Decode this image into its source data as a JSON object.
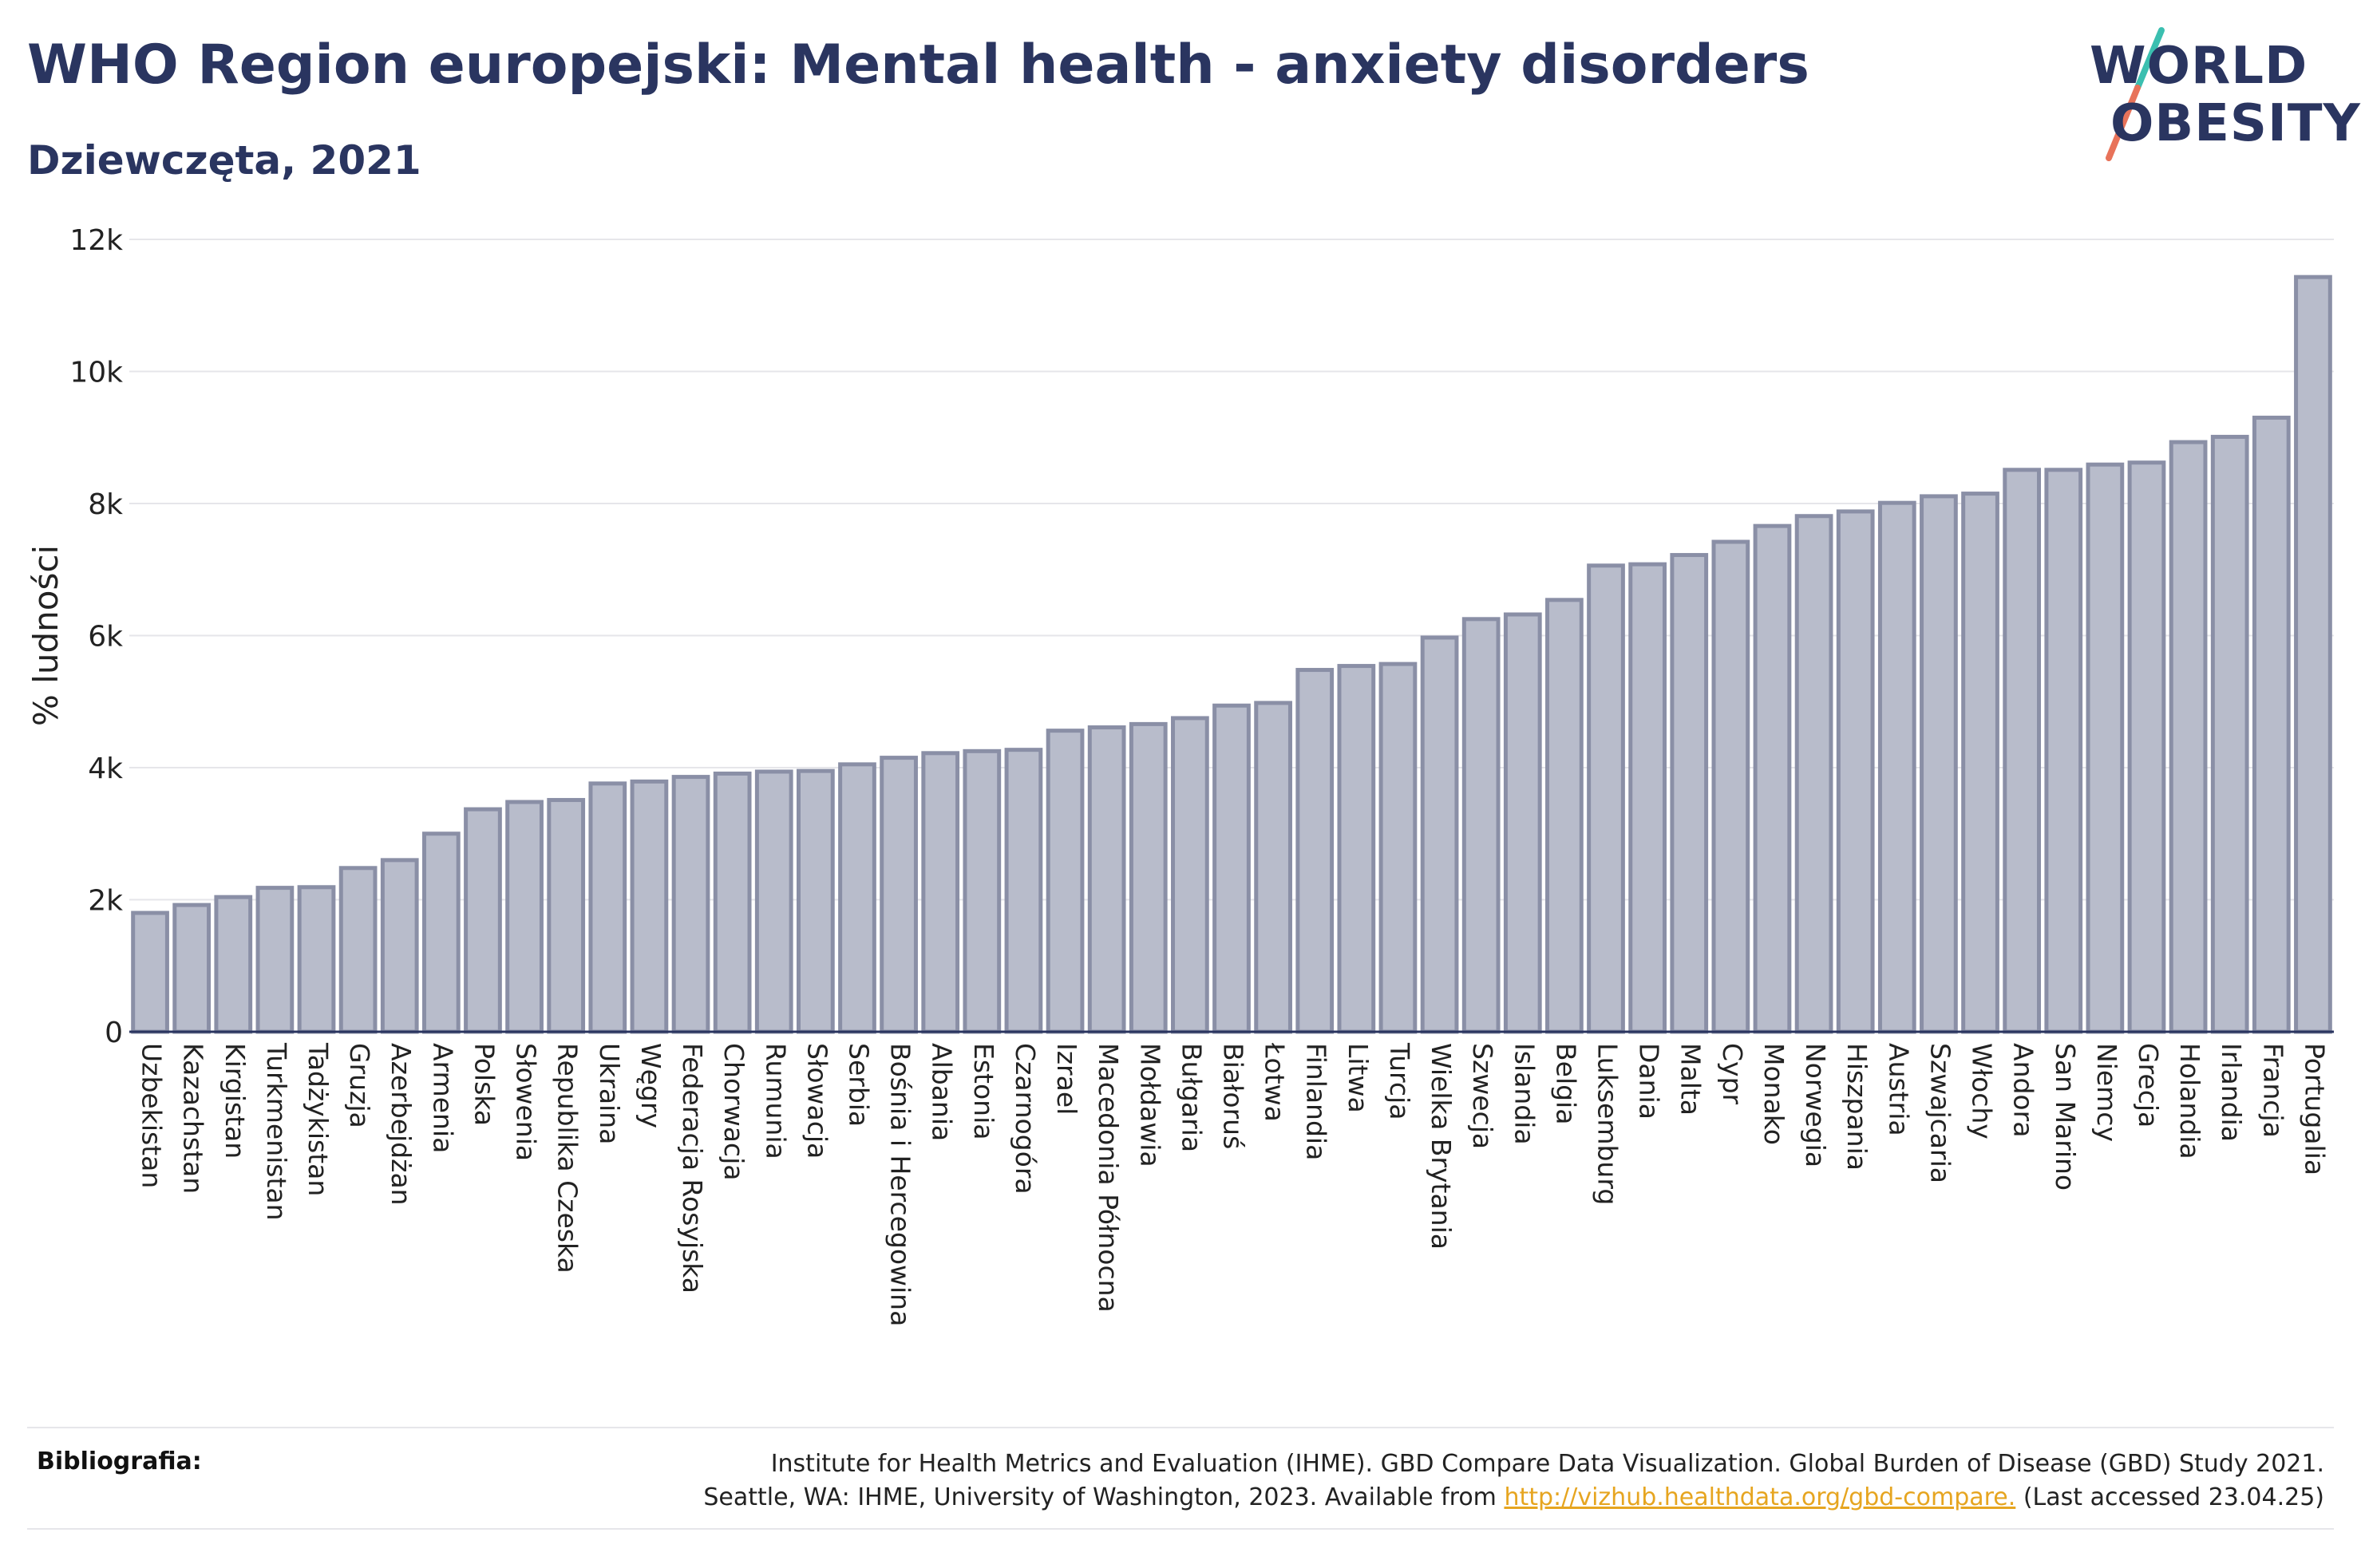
{
  "header": {
    "title": "WHO Region europejski: Mental health - anxiety disorders",
    "subtitle": "Dziewczęta, 2021"
  },
  "logo": {
    "line1": "WORLD",
    "line2": "OBESITY",
    "colors": {
      "text": "#2a3560",
      "slash_top": "#3bbfb0",
      "slash_bottom": "#e8735a"
    }
  },
  "footer": {
    "label": "Bibliografia:",
    "line1": "Institute for Health Metrics and Evaluation (IHME). GBD Compare Data Visualization. Global Burden of Disease (GBD) Study 2021.",
    "line2_prefix": "Seattle, WA: IHME, University of Washington, 2023. Available from ",
    "link": "http://vizhub.healthdata.org/gbd-compare.",
    "line2_suffix": " (Last accessed 23.04.25)"
  },
  "chart_data": {
    "type": "bar",
    "title": "WHO Region europejski: Mental health - anxiety disorders",
    "subtitle": "Dziewczęta, 2021",
    "ylabel": "% ludności",
    "xlabel": "",
    "ylim": [
      0,
      12000
    ],
    "yticks": [
      0,
      2000,
      4000,
      6000,
      8000,
      10000,
      12000
    ],
    "ytick_labels": [
      "0",
      "2k",
      "4k",
      "6k",
      "8k",
      "10k",
      "12k"
    ],
    "grid": true,
    "colors": {
      "bar_fill": "#b8bccb",
      "bar_stroke": "#8a8fa6",
      "axis": "#2a3560",
      "grid": "#e6e6ea"
    },
    "categories": [
      "Uzbekistan",
      "Kazachstan",
      "Kirgistan",
      "Turkmenistan",
      "Tadżykistan",
      "Gruzja",
      "Azerbejdżan",
      "Armenia",
      "Polska",
      "Słowenia",
      "Republika Czeska",
      "Ukraina",
      "Węgry",
      "Federacja Rosyjska",
      "Chorwacja",
      "Rumunia",
      "Słowacja",
      "Serbia",
      "Bośnia i Hercegowina",
      "Albania",
      "Estonia",
      "Czarnogóra",
      "Izrael",
      "Macedonia Północna",
      "Mołdawia",
      "Bułgaria",
      "Białoruś",
      "Łotwa",
      "Finlandia",
      "Litwa",
      "Turcja",
      "Wielka Brytania",
      "Szwecja",
      "Islandia",
      "Belgia",
      "Luksemburg",
      "Dania",
      "Malta",
      "Cypr",
      "Monako",
      "Norwegia",
      "Hiszpania",
      "Austria",
      "Szwajcaria",
      "Włochy",
      "Andora",
      "San Marino",
      "Niemcy",
      "Grecja",
      "Holandia",
      "Irlandia",
      "Francja",
      "Portugalia"
    ],
    "values": [
      1800,
      1920,
      2040,
      2180,
      2190,
      2480,
      2600,
      3000,
      3370,
      3480,
      3510,
      3760,
      3790,
      3860,
      3910,
      3940,
      3950,
      4050,
      4150,
      4220,
      4250,
      4270,
      4560,
      4610,
      4660,
      4750,
      4940,
      4980,
      5480,
      5540,
      5570,
      5970,
      6250,
      6320,
      6540,
      7060,
      7080,
      7220,
      7420,
      7660,
      7810,
      7880,
      8010,
      8110,
      8150,
      8510,
      8510,
      8590,
      8620,
      8930,
      9010,
      9300,
      11430
    ]
  }
}
